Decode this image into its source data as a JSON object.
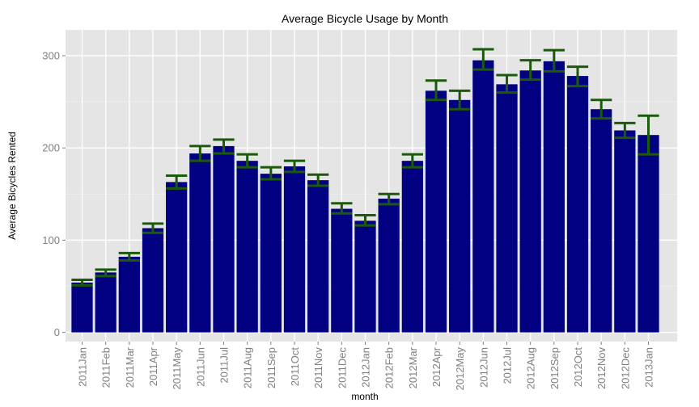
{
  "chart_data": {
    "type": "bar",
    "title": "Average Bicycle Usage by Month",
    "xlabel": "month",
    "ylabel": "Average Bicycles Rented",
    "ylim": [
      -10,
      328
    ],
    "yticks": [
      0,
      100,
      200,
      300
    ],
    "grid": true,
    "categories": [
      "2011Jan",
      "2011Feb",
      "2011Mar",
      "2011Apr",
      "2011May",
      "2011Jun",
      "2011Jul",
      "2011Aug",
      "2011Sep",
      "2011Oct",
      "2011Nov",
      "2011Dec",
      "2012Jan",
      "2012Feb",
      "2012Mar",
      "2012Apr",
      "2012May",
      "2012Jun",
      "2012Jul",
      "2012Aug",
      "2012Sep",
      "2012Oct",
      "2012Nov",
      "2012Dec",
      "2013Jan"
    ],
    "values": [
      54,
      65,
      82,
      113,
      163,
      194,
      202,
      186,
      172,
      180,
      165,
      134,
      121,
      145,
      186,
      262,
      252,
      295,
      269,
      284,
      294,
      278,
      242,
      219,
      214
    ],
    "error_low": [
      51,
      61,
      78,
      108,
      156,
      186,
      194,
      179,
      166,
      174,
      159,
      129,
      116,
      139,
      179,
      252,
      242,
      285,
      260,
      274,
      283,
      267,
      232,
      211,
      193
    ],
    "error_high": [
      57,
      68,
      86,
      118,
      170,
      202,
      209,
      193,
      179,
      186,
      171,
      140,
      127,
      150,
      193,
      273,
      262,
      307,
      279,
      295,
      306,
      288,
      252,
      227,
      235
    ],
    "colors": {
      "bar": "#000080",
      "error_bar": "#1a5a0a",
      "panel": "#e5e5e5",
      "grid_major": "#ffffff",
      "grid_minor": "#f0f0f0",
      "tick_label": "#7f7f7f"
    }
  }
}
